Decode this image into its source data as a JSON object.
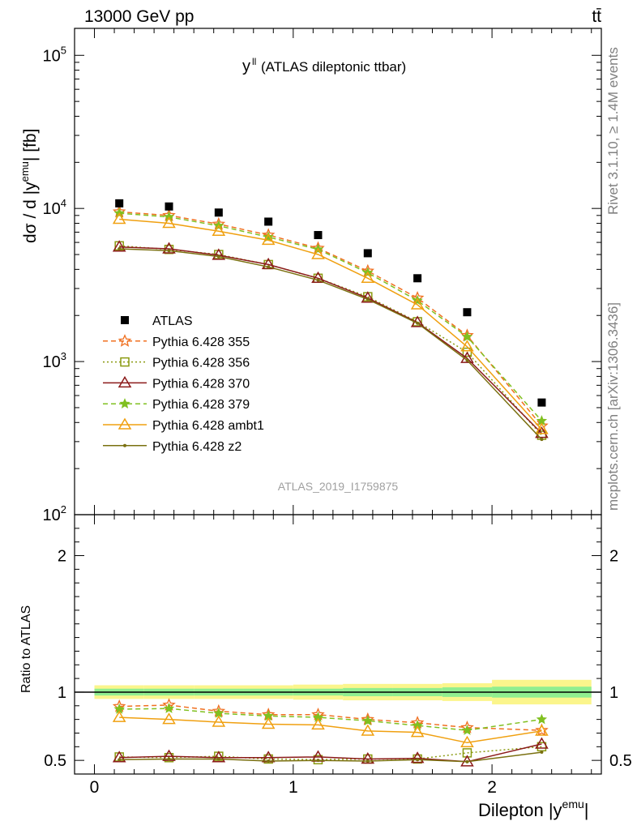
{
  "header": {
    "left": "13000 GeV pp",
    "right": "tt̄",
    "rivet": "Rivet 3.1.10, ≥ 1.4M events",
    "mcplots": "mcplots.cern.ch [arXiv:1306.3436]"
  },
  "chart_data": {
    "type": "line",
    "title": "y^ll (ATLAS dileptonic ttbar)",
    "analysis_id": "ATLAS_2019_I1759875",
    "xlabel": "Dilepton |y^emu|",
    "ylabel": "dσ / d |y^emu| [fb]",
    "ratio_ylabel": "Ratio to ATLAS",
    "xlim": [
      -0.1,
      2.55
    ],
    "ylim": [
      100,
      150000
    ],
    "yscale": "log",
    "ratio_ylim": [
      0.4,
      2.3
    ],
    "x_ticks": [
      "0",
      "1",
      "2"
    ],
    "y_ticks": [
      "10^2",
      "10^3",
      "10^4",
      "10^5"
    ],
    "ratio_ticks": [
      "0.5",
      "1",
      "2"
    ],
    "legend_position": "middle-left",
    "x": [
      0.125,
      0.375,
      0.625,
      0.875,
      1.125,
      1.375,
      1.625,
      1.875,
      2.25
    ],
    "x_edges": [
      0,
      0.25,
      0.5,
      0.75,
      1.0,
      1.25,
      1.5,
      1.75,
      2.0,
      2.5
    ],
    "data": {
      "name": "ATLAS",
      "values": [
        10800,
        10300,
        9400,
        8200,
        6700,
        5100,
        3500,
        2100,
        540
      ],
      "band_inner": [
        0.025,
        0.025,
        0.025,
        0.025,
        0.025,
        0.03,
        0.03,
        0.035,
        0.04
      ],
      "band_outer": [
        0.05,
        0.05,
        0.05,
        0.05,
        0.055,
        0.06,
        0.06,
        0.065,
        0.09
      ]
    },
    "series": [
      {
        "name": "Pythia 6.428 355",
        "color": "#f07020",
        "dash": "6,4",
        "marker": "star-open",
        "values": [
          9500,
          9000,
          7900,
          6700,
          5500,
          3900,
          2600,
          1480,
          380
        ],
        "ratio": [
          0.895,
          0.905,
          0.86,
          0.835,
          0.835,
          0.8,
          0.775,
          0.74,
          0.72
        ]
      },
      {
        "name": "Pythia 6.428 356",
        "color": "#8a9a10",
        "dash": "2,3",
        "marker": "square-open",
        "values": [
          5700,
          5400,
          5000,
          4300,
          3500,
          2650,
          1820,
          1150,
          330
        ],
        "ratio": [
          0.525,
          0.52,
          0.53,
          0.51,
          0.505,
          0.51,
          0.51,
          0.555,
          0.6
        ]
      },
      {
        "name": "Pythia 6.428 370",
        "color": "#8b1a1a",
        "dash": "",
        "marker": "triangle-open",
        "values": [
          5600,
          5450,
          4950,
          4300,
          3500,
          2600,
          1800,
          1050,
          340
        ],
        "ratio": [
          0.52,
          0.53,
          0.52,
          0.52,
          0.525,
          0.51,
          0.515,
          0.49,
          0.62
        ]
      },
      {
        "name": "Pythia 6.428 379",
        "color": "#80c020",
        "dash": "6,4",
        "marker": "star",
        "values": [
          9300,
          8800,
          7700,
          6500,
          5400,
          3800,
          2500,
          1450,
          410
        ],
        "ratio": [
          0.875,
          0.88,
          0.845,
          0.825,
          0.815,
          0.79,
          0.755,
          0.72,
          0.8
        ]
      },
      {
        "name": "Pythia 6.428 ambt1",
        "color": "#f0a010",
        "dash": "",
        "marker": "triangle-open",
        "values": [
          8500,
          8000,
          7100,
          6200,
          5000,
          3500,
          2350,
          1250,
          360
        ],
        "ratio": [
          0.815,
          0.8,
          0.78,
          0.765,
          0.76,
          0.715,
          0.705,
          0.63,
          0.715
        ]
      },
      {
        "name": "Pythia 6.428 z2",
        "color": "#7a7010",
        "dash": "",
        "marker": "dot",
        "values": [
          5450,
          5300,
          4850,
          4150,
          3400,
          2550,
          1780,
          1020,
          310
        ],
        "ratio": [
          0.505,
          0.51,
          0.51,
          0.495,
          0.5,
          0.495,
          0.505,
          0.49,
          0.56
        ]
      }
    ]
  }
}
